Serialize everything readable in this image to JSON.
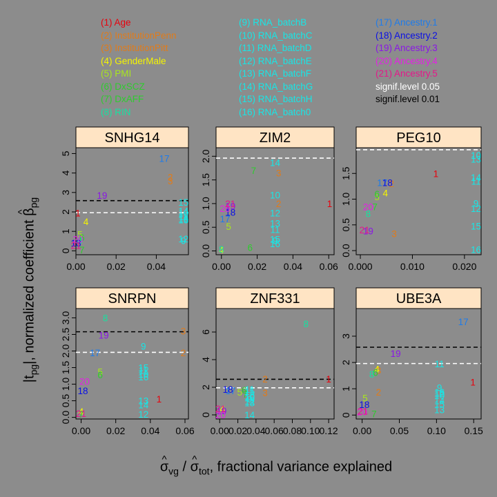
{
  "legend": {
    "columns": [
      [
        {
          "text": "(1) Age",
          "color": "#e8000b"
        },
        {
          "text": "(2) InstitutionPenn",
          "color": "#e07b1a"
        },
        {
          "text": "(3) InstitutionPitt",
          "color": "#e07b1a"
        },
        {
          "text": "(4) GenderMale",
          "color": "#f5f500"
        },
        {
          "text": "(5) PMI",
          "color": "#a8e61d"
        },
        {
          "text": "(6) DxSCZ",
          "color": "#2ecc2e"
        },
        {
          "text": "(7) DxAFF",
          "color": "#2ecc2e"
        },
        {
          "text": "(8) RIN",
          "color": "#18e0a0"
        }
      ],
      [
        {
          "text": "(9) RNA_batchB",
          "color": "#18e6e6"
        },
        {
          "text": "(10) RNA_batchC",
          "color": "#18e6e6"
        },
        {
          "text": "(11) RNA_batchD",
          "color": "#18e6e6"
        },
        {
          "text": "(12) RNA_batchE",
          "color": "#18e6e6"
        },
        {
          "text": "(13) RNA_batchF",
          "color": "#18e6e6"
        },
        {
          "text": "(14) RNA_batchG",
          "color": "#18e6e6"
        },
        {
          "text": "(15) RNA_batchH",
          "color": "#18e6e6"
        },
        {
          "text": "(16) RNA_batch0",
          "color": "#18e6e6"
        }
      ],
      [
        {
          "text": "(17) Ancestry.1",
          "color": "#1e7bea"
        },
        {
          "text": "(18) Ancestry.2",
          "color": "#0a10e6"
        },
        {
          "text": "(19) Ancestry.3",
          "color": "#8a16e6"
        },
        {
          "text": "(20) Ancestry.4",
          "color": "#e61ee6"
        },
        {
          "text": "(21) Ancestry.5",
          "color": "#e6168a"
        },
        {
          "text": "signif.level 0.05",
          "color": "#ffffff"
        },
        {
          "text": "signif.level 0.01",
          "color": "#000000"
        }
      ]
    ]
  },
  "axis_labels": {
    "y_prefix": "|t",
    "y_sub1": "pg",
    "y_mid": "|, normalized coefficient ",
    "y_beta": "β",
    "y_sub2": "pg",
    "x_sigma": "σ",
    "x_sub1": "vg",
    "x_slash": " / ",
    "x_sub2": "tot",
    "x_rest": ", fractional variance explained"
  },
  "colors": {
    "background": "#8c8c8c",
    "strip": "#ffe4c4",
    "sig005": "#ffffff",
    "sig001": "#000000"
  },
  "chart_data": [
    {
      "type": "scatter",
      "title": "SNHG14",
      "xlim": [
        0,
        0.056
      ],
      "xticks": [
        0.0,
        0.02,
        0.04
      ],
      "xtick_labels": [
        "0.00",
        "0.02",
        "0.04"
      ],
      "ylim": [
        -0.2,
        5.3
      ],
      "yticks": [
        0,
        1,
        2,
        3,
        4,
        5
      ],
      "ytick_labels": [
        "0",
        "1",
        "2",
        "3",
        "4",
        "5"
      ],
      "sig_005": 1.96,
      "sig_001": 2.58,
      "points": [
        {
          "label": "1",
          "x": 0.001,
          "y": 1.95
        },
        {
          "label": "2",
          "x": 0.047,
          "y": 3.8
        },
        {
          "label": "3",
          "x": 0.047,
          "y": 3.6
        },
        {
          "label": "4",
          "x": 0.005,
          "y": 1.5
        },
        {
          "label": "5",
          "x": 0.002,
          "y": 0.85
        },
        {
          "label": "6",
          "x": 0.003,
          "y": 0.68
        },
        {
          "label": "7",
          "x": 0.003,
          "y": 0.05
        },
        {
          "label": "8",
          "x": 0.002,
          "y": 0.55
        },
        {
          "label": "9",
          "x": 0.0535,
          "y": 0.52
        },
        {
          "label": "10",
          "x": 0.0535,
          "y": 1.95
        },
        {
          "label": "11",
          "x": 0.0535,
          "y": 1.75
        },
        {
          "label": "12",
          "x": 0.0535,
          "y": 0.62
        },
        {
          "label": "13",
          "x": 0.0535,
          "y": 1.6
        },
        {
          "label": "14",
          "x": 0.0535,
          "y": 2.05
        },
        {
          "label": "15",
          "x": 0.0535,
          "y": 2.5
        },
        {
          "label": "16",
          "x": 0.0535,
          "y": 1.65
        },
        {
          "label": "17",
          "x": 0.044,
          "y": 4.75
        },
        {
          "label": "18",
          "x": 0.0,
          "y": 0.4
        },
        {
          "label": "19",
          "x": 0.013,
          "y": 2.85
        },
        {
          "label": "20",
          "x": 0.001,
          "y": 0.6
        },
        {
          "label": "21",
          "x": 0.0,
          "y": 0.28
        }
      ]
    },
    {
      "type": "scatter",
      "title": "ZIM2",
      "xlim": [
        -0.003,
        0.063
      ],
      "xticks": [
        0.0,
        0.02,
        0.04,
        0.06
      ],
      "xtick_labels": [
        "0.00",
        "0.02",
        "0.04",
        "0.06"
      ],
      "ylim": [
        -0.08,
        2.18
      ],
      "yticks": [
        0.0,
        0.5,
        1.0,
        1.5,
        2.0
      ],
      "ytick_labels": [
        "0.0",
        "0.5",
        "1.0",
        "1.5",
        "2.0"
      ],
      "sig_005": 1.96,
      "sig_001": 2.58,
      "points": [
        {
          "label": "1",
          "x": 0.0605,
          "y": 1.0
        },
        {
          "label": "2",
          "x": 0.032,
          "y": 1.0
        },
        {
          "label": "3",
          "x": 0.032,
          "y": 1.65
        },
        {
          "label": "4",
          "x": 0.0,
          "y": 0.02
        },
        {
          "label": "5",
          "x": 0.004,
          "y": 0.52
        },
        {
          "label": "6",
          "x": 0.016,
          "y": 0.07
        },
        {
          "label": "7",
          "x": 0.018,
          "y": 1.7
        },
        {
          "label": "8",
          "x": 0.0,
          "y": 0.04
        },
        {
          "label": "9",
          "x": 0.03,
          "y": 0.22
        },
        {
          "label": "10",
          "x": 0.03,
          "y": 1.18
        },
        {
          "label": "11",
          "x": 0.03,
          "y": 0.45
        },
        {
          "label": "12",
          "x": 0.03,
          "y": 0.8
        },
        {
          "label": "13",
          "x": 0.03,
          "y": 0.58
        },
        {
          "label": "14",
          "x": 0.03,
          "y": 1.87
        },
        {
          "label": "15",
          "x": 0.03,
          "y": 0.25
        },
        {
          "label": "16",
          "x": 0.03,
          "y": 0.15
        },
        {
          "label": "17",
          "x": 0.002,
          "y": 0.68
        },
        {
          "label": "18",
          "x": 0.005,
          "y": 0.82
        },
        {
          "label": "19",
          "x": 0.005,
          "y": 0.95
        },
        {
          "label": "20",
          "x": 0.002,
          "y": 0.9
        },
        {
          "label": "21",
          "x": 0.005,
          "y": 1.0
        }
      ]
    },
    {
      "type": "scatter",
      "title": "PEG10",
      "xlim": [
        -0.0008,
        0.0232
      ],
      "xticks": [
        0.0,
        0.01,
        0.02
      ],
      "xtick_labels": [
        "0.000",
        "0.010",
        "0.020"
      ],
      "ylim": [
        -0.08,
        2.0
      ],
      "yticks": [
        0.0,
        0.5,
        1.0,
        1.5
      ],
      "ytick_labels": [
        "0.0",
        "0.5",
        "1.0",
        "1.5"
      ],
      "sig_005": 1.96,
      "sig_001": 2.58,
      "points": [
        {
          "label": "1",
          "x": 0.0145,
          "y": 1.5
        },
        {
          "label": "2",
          "x": 0.006,
          "y": 1.3
        },
        {
          "label": "3",
          "x": 0.0065,
          "y": 0.33
        },
        {
          "label": "4",
          "x": 0.0048,
          "y": 1.12
        },
        {
          "label": "5",
          "x": 0.0032,
          "y": 1.05
        },
        {
          "label": "6",
          "x": 0.0032,
          "y": 1.1
        },
        {
          "label": "7",
          "x": 0.0028,
          "y": 0.85
        },
        {
          "label": "8",
          "x": 0.0015,
          "y": 0.72
        },
        {
          "label": "9",
          "x": 0.0222,
          "y": 0.92
        },
        {
          "label": "10",
          "x": 0.0222,
          "y": 1.85
        },
        {
          "label": "11",
          "x": 0.0222,
          "y": 1.35
        },
        {
          "label": "12",
          "x": 0.0222,
          "y": 0.82
        },
        {
          "label": "13",
          "x": 0.0222,
          "y": 1.78
        },
        {
          "label": "14",
          "x": 0.0222,
          "y": 1.42
        },
        {
          "label": "15",
          "x": 0.0222,
          "y": 0.48
        },
        {
          "label": "16",
          "x": 0.0222,
          "y": 0.02
        },
        {
          "label": "17",
          "x": 0.0042,
          "y": 1.32
        },
        {
          "label": "18",
          "x": 0.0052,
          "y": 1.32
        },
        {
          "label": "19",
          "x": 0.0015,
          "y": 0.38
        },
        {
          "label": "20",
          "x": 0.0015,
          "y": 0.85
        },
        {
          "label": "21",
          "x": 0.0008,
          "y": 0.4
        }
      ]
    },
    {
      "type": "scatter",
      "title": "SNRPN",
      "xlim": [
        -0.003,
        0.062
      ],
      "xticks": [
        0.0,
        0.02,
        0.04,
        0.06
      ],
      "xtick_labels": [
        "0.00",
        "0.02",
        "0.04",
        "0.06"
      ],
      "ylim": [
        -0.05,
        3.28
      ],
      "yticks": [
        0.0,
        0.5,
        1.0,
        1.5,
        2.0,
        2.5,
        3.0
      ],
      "ytick_labels": [
        "0.0",
        "0.5",
        "1.0",
        "1.5",
        "2.0",
        "2.5",
        "3.0"
      ],
      "sig_005": 1.96,
      "sig_001": 2.58,
      "points": [
        {
          "label": "1",
          "x": 0.045,
          "y": 0.55
        },
        {
          "label": "2",
          "x": 0.059,
          "y": 1.95
        },
        {
          "label": "3",
          "x": 0.059,
          "y": 2.6
        },
        {
          "label": "4",
          "x": 0.0,
          "y": 0.18
        },
        {
          "label": "5",
          "x": 0.011,
          "y": 1.38
        },
        {
          "label": "6",
          "x": 0.011,
          "y": 1.28
        },
        {
          "label": "7",
          "x": 0.0,
          "y": 0.1
        },
        {
          "label": "8",
          "x": 0.014,
          "y": 3.0
        },
        {
          "label": "9",
          "x": 0.036,
          "y": 2.15
        },
        {
          "label": "10",
          "x": 0.036,
          "y": 1.3
        },
        {
          "label": "11",
          "x": 0.036,
          "y": 1.42
        },
        {
          "label": "12",
          "x": 0.036,
          "y": 0.1
        },
        {
          "label": "13",
          "x": 0.036,
          "y": 0.5
        },
        {
          "label": "14",
          "x": 0.036,
          "y": 0.38
        },
        {
          "label": "15",
          "x": 0.036,
          "y": 1.5
        },
        {
          "label": "16",
          "x": 0.036,
          "y": 1.22
        },
        {
          "label": "17",
          "x": 0.008,
          "y": 1.95
        },
        {
          "label": "18",
          "x": 0.001,
          "y": 0.8
        },
        {
          "label": "19",
          "x": 0.013,
          "y": 2.48
        },
        {
          "label": "20",
          "x": 0.002,
          "y": 1.08
        },
        {
          "label": "21",
          "x": 0.0,
          "y": 0.12
        }
      ]
    },
    {
      "type": "scatter",
      "title": "ZNF331",
      "xlim": [
        -0.004,
        0.126
      ],
      "xticks": [
        0.0,
        0.02,
        0.04,
        0.06,
        0.08,
        0.1,
        0.12
      ],
      "xtick_labels": [
        "0.00",
        "0.02",
        "0.04",
        "0.06",
        "0.08",
        "0.10",
        "0.12"
      ],
      "ylim": [
        -0.3,
        7.7
      ],
      "yticks": [
        0,
        2,
        4,
        6
      ],
      "ytick_labels": [
        "0",
        "2",
        "4",
        "6"
      ],
      "sig_005": 1.96,
      "sig_001": 2.58,
      "points": [
        {
          "label": "1",
          "x": 0.12,
          "y": 2.6
        },
        {
          "label": "2",
          "x": 0.05,
          "y": 2.6
        },
        {
          "label": "3",
          "x": 0.05,
          "y": 1.6
        },
        {
          "label": "4",
          "x": 0.003,
          "y": 0.45
        },
        {
          "label": "5",
          "x": 0.022,
          "y": 1.65
        },
        {
          "label": "6",
          "x": 0.027,
          "y": 1.8
        },
        {
          "label": "7",
          "x": 0.028,
          "y": 1.5
        },
        {
          "label": "8",
          "x": 0.095,
          "y": 6.6
        },
        {
          "label": "9",
          "x": 0.033,
          "y": 1.15
        },
        {
          "label": "10",
          "x": 0.033,
          "y": 1.35
        },
        {
          "label": "11",
          "x": 0.033,
          "y": 1.85
        },
        {
          "label": "12",
          "x": 0.033,
          "y": 1.0
        },
        {
          "label": "13",
          "x": 0.033,
          "y": 0.88
        },
        {
          "label": "14",
          "x": 0.033,
          "y": 0.0
        },
        {
          "label": "15",
          "x": 0.033,
          "y": 1.7
        },
        {
          "label": "16",
          "x": 0.033,
          "y": 1.25
        },
        {
          "label": "17",
          "x": 0.012,
          "y": 1.75
        },
        {
          "label": "18",
          "x": 0.009,
          "y": 1.85
        },
        {
          "label": "19",
          "x": 0.002,
          "y": 0.3
        },
        {
          "label": "20",
          "x": 0.001,
          "y": 0.0
        },
        {
          "label": "21",
          "x": 0.001,
          "y": 0.45
        }
      ]
    },
    {
      "type": "scatter",
      "title": "UBE3A",
      "xlim": [
        -0.008,
        0.16
      ],
      "xticks": [
        0.0,
        0.05,
        0.1,
        0.15
      ],
      "xtick_labels": [
        "0.00",
        "0.05",
        "0.10",
        "0.15"
      ],
      "ylim": [
        -0.15,
        4.05
      ],
      "yticks": [
        0,
        1,
        2,
        3
      ],
      "ytick_labels": [
        "0",
        "1",
        "2",
        "3"
      ],
      "sig_005": 1.96,
      "sig_001": 2.58,
      "points": [
        {
          "label": "1",
          "x": 0.149,
          "y": 1.25
        },
        {
          "label": "2",
          "x": 0.022,
          "y": 0.88
        },
        {
          "label": "3",
          "x": 0.022,
          "y": 1.7
        },
        {
          "label": "4",
          "x": 0.02,
          "y": 1.75
        },
        {
          "label": "5",
          "x": 0.004,
          "y": 0.65
        },
        {
          "label": "6",
          "x": 0.018,
          "y": 1.62
        },
        {
          "label": "7",
          "x": 0.016,
          "y": 0.05
        },
        {
          "label": "8",
          "x": 0.013,
          "y": 1.55
        },
        {
          "label": "9",
          "x": 0.104,
          "y": 1.05
        },
        {
          "label": "10",
          "x": 0.104,
          "y": 0.75
        },
        {
          "label": "11",
          "x": 0.104,
          "y": 1.95
        },
        {
          "label": "12",
          "x": 0.104,
          "y": 0.82
        },
        {
          "label": "13",
          "x": 0.104,
          "y": 0.2
        },
        {
          "label": "14",
          "x": 0.104,
          "y": 0.55
        },
        {
          "label": "15",
          "x": 0.104,
          "y": 0.42
        },
        {
          "label": "16",
          "x": 0.104,
          "y": 0.88
        },
        {
          "label": "17",
          "x": 0.136,
          "y": 3.55
        },
        {
          "label": "18",
          "x": 0.003,
          "y": 0.4
        },
        {
          "label": "19",
          "x": 0.045,
          "y": 2.35
        },
        {
          "label": "20",
          "x": 0.0,
          "y": 0.12
        },
        {
          "label": "21",
          "x": 0.001,
          "y": 0.15
        }
      ]
    }
  ]
}
